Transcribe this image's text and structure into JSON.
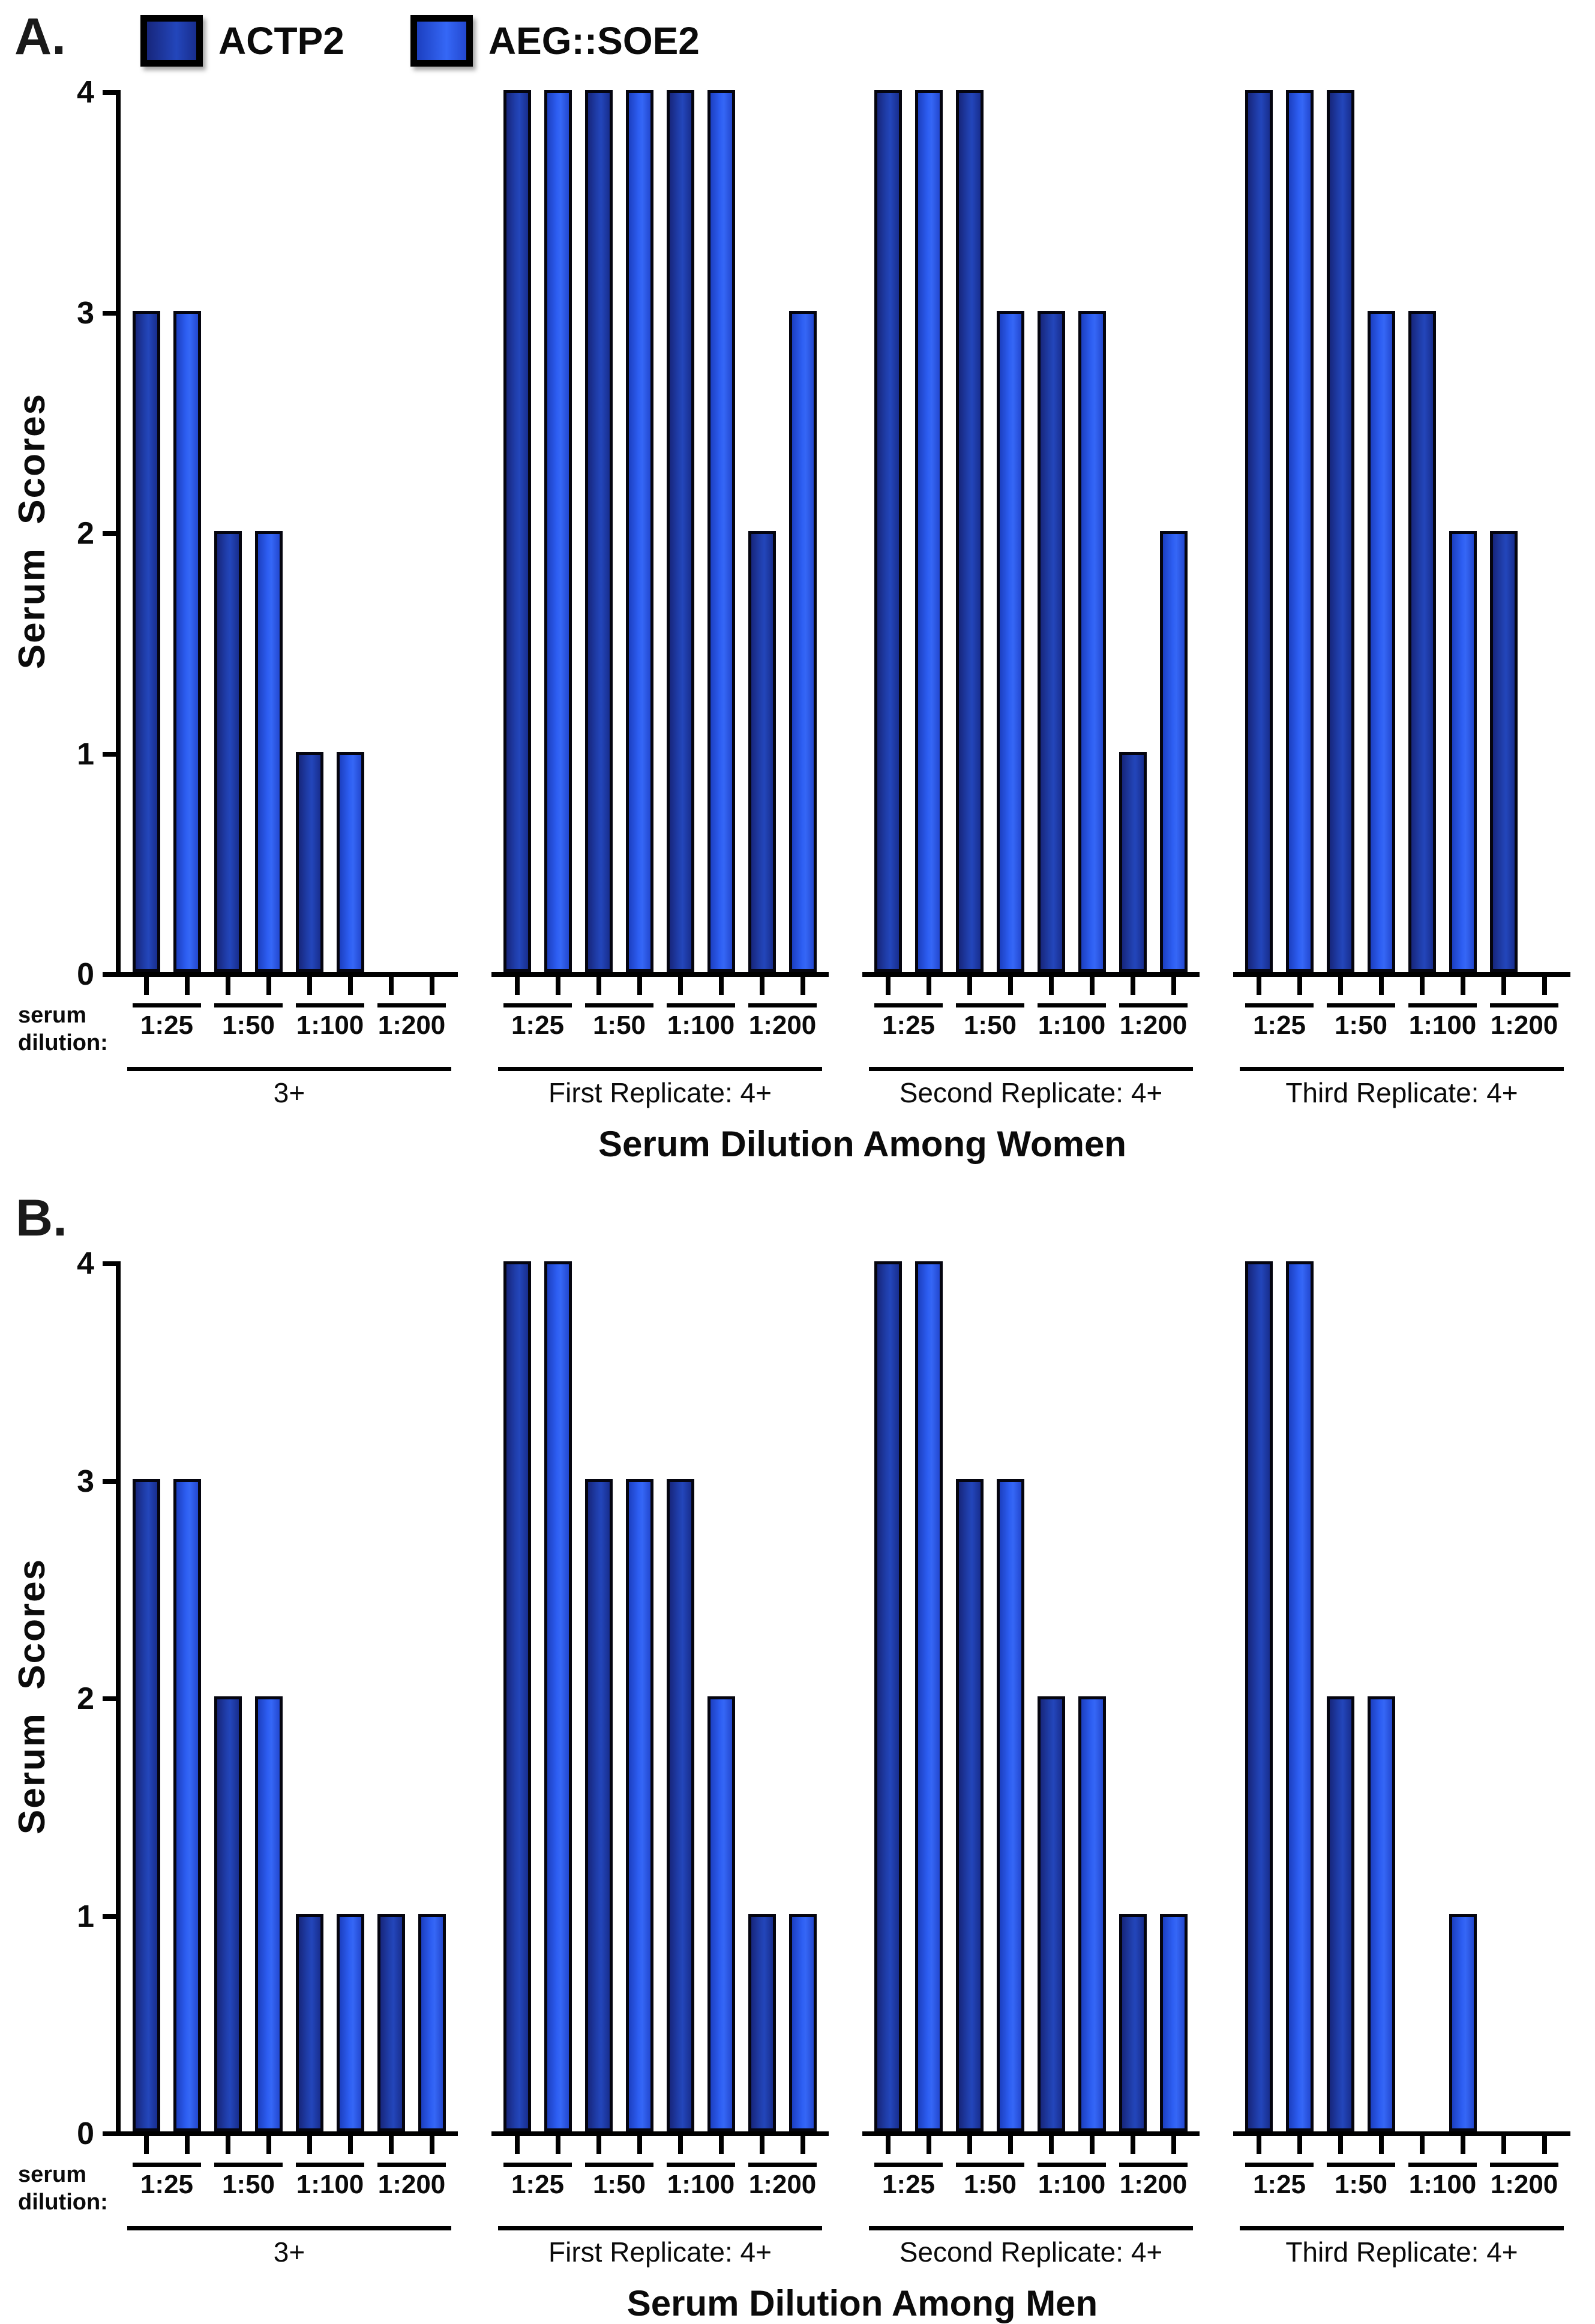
{
  "figure": {
    "legend": {
      "items": [
        {
          "label": "ACTP2",
          "color_hint": "#1e3aa6"
        },
        {
          "label": "AEG::SOE2",
          "color_hint": "#2d5ef2"
        }
      ]
    },
    "panels": [
      {
        "letter": "A.",
        "title": "Serum Dilution Among Women",
        "y_axis_label": "Serum  Scores",
        "caption_line1": "serum",
        "caption_line2": "dilution:",
        "y_ticks": [
          0,
          1,
          2,
          3,
          4
        ]
      },
      {
        "letter": "B.",
        "title": "Serum Dilution Among Men",
        "y_axis_label": "Serum  Scores",
        "caption_line1": "serum",
        "caption_line2": "dilution:",
        "y_ticks": [
          0,
          1,
          2,
          3,
          4
        ]
      }
    ]
  },
  "chart_data": [
    {
      "type": "bar",
      "panel": "A",
      "title": "Serum Dilution Among Women",
      "ylabel": "Serum Scores",
      "ylim": [
        0,
        4
      ],
      "yticks": [
        0,
        1,
        2,
        3,
        4
      ],
      "categories": [
        "1:25",
        "1:50",
        "1:100",
        "1:200"
      ],
      "legend": [
        "ACTP2",
        "AEG::SOE2"
      ],
      "legend_position": "top-left",
      "grid": false,
      "groups": [
        {
          "label": "3+",
          "series": [
            {
              "name": "ACTP2",
              "values": [
                3,
                2,
                1,
                0
              ]
            },
            {
              "name": "AEG::SOE2",
              "values": [
                3,
                2,
                1,
                0
              ]
            }
          ]
        },
        {
          "label": "First Replicate: 4+",
          "series": [
            {
              "name": "ACTP2",
              "values": [
                4,
                4,
                4,
                2
              ]
            },
            {
              "name": "AEG::SOE2",
              "values": [
                4,
                4,
                4,
                3
              ]
            }
          ]
        },
        {
          "label": "Second Replicate: 4+",
          "series": [
            {
              "name": "ACTP2",
              "values": [
                4,
                4,
                3,
                1
              ]
            },
            {
              "name": "AEG::SOE2",
              "values": [
                4,
                3,
                3,
                2
              ]
            }
          ]
        },
        {
          "label": "Third Replicate: 4+",
          "series": [
            {
              "name": "ACTP2",
              "values": [
                4,
                4,
                3,
                2
              ]
            },
            {
              "name": "AEG::SOE2",
              "values": [
                4,
                3,
                2,
                0
              ]
            }
          ]
        }
      ]
    },
    {
      "type": "bar",
      "panel": "B",
      "title": "Serum Dilution Among Men",
      "ylabel": "Serum Scores",
      "ylim": [
        0,
        4
      ],
      "yticks": [
        0,
        1,
        2,
        3,
        4
      ],
      "categories": [
        "1:25",
        "1:50",
        "1:100",
        "1:200"
      ],
      "legend": [
        "ACTP2",
        "AEG::SOE2"
      ],
      "legend_position": "top-left",
      "grid": false,
      "groups": [
        {
          "label": "3+",
          "series": [
            {
              "name": "ACTP2",
              "values": [
                3,
                2,
                1,
                1
              ]
            },
            {
              "name": "AEG::SOE2",
              "values": [
                3,
                2,
                1,
                1
              ]
            }
          ]
        },
        {
          "label": "First Replicate: 4+",
          "series": [
            {
              "name": "ACTP2",
              "values": [
                4,
                3,
                3,
                1
              ]
            },
            {
              "name": "AEG::SOE2",
              "values": [
                4,
                3,
                2,
                1
              ]
            }
          ]
        },
        {
          "label": "Second Replicate: 4+",
          "series": [
            {
              "name": "ACTP2",
              "values": [
                4,
                3,
                2,
                1
              ]
            },
            {
              "name": "AEG::SOE2",
              "values": [
                4,
                3,
                2,
                1
              ]
            }
          ]
        },
        {
          "label": "Third Replicate: 4+",
          "series": [
            {
              "name": "ACTP2",
              "values": [
                4,
                2,
                0,
                0
              ]
            },
            {
              "name": "AEG::SOE2",
              "values": [
                4,
                2,
                1,
                0
              ]
            }
          ]
        }
      ]
    }
  ]
}
